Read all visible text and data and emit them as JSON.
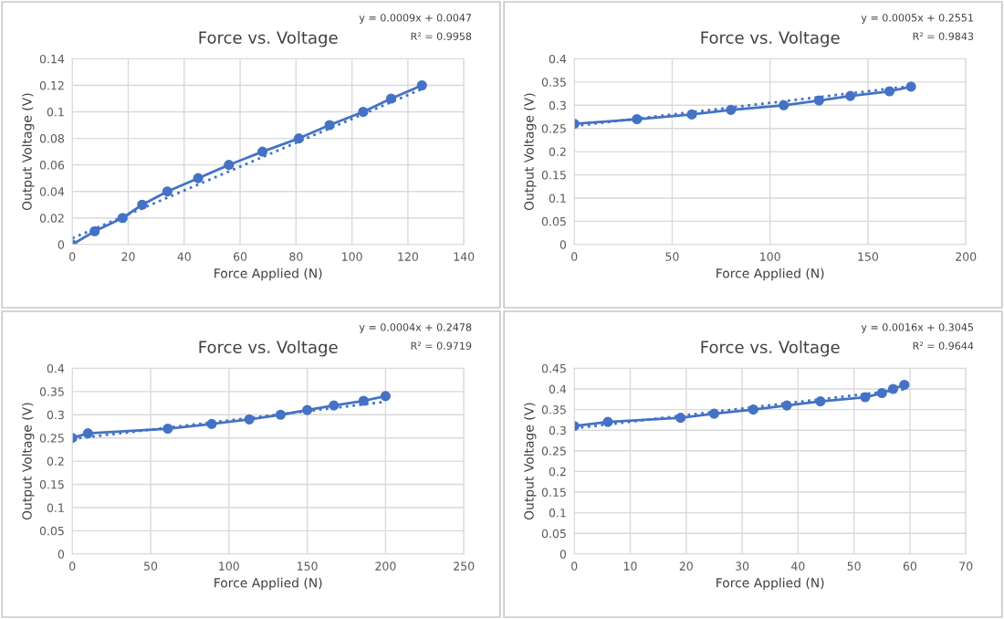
{
  "chart_data": [
    {
      "type": "line",
      "title": "Force vs. Voltage",
      "xlabel": "Force Applied (N)",
      "ylabel": "Output Voltage (V)",
      "annotations": [
        "y = 0.0009x + 0.0047",
        "R² = 0.9958"
      ],
      "xlim": [
        0,
        140
      ],
      "xticks": [
        0,
        20,
        40,
        60,
        80,
        100,
        120,
        140
      ],
      "ylim": [
        0,
        0.14
      ],
      "yticks": [
        0,
        0.02,
        0.04,
        0.06,
        0.08,
        0.1,
        0.12,
        0.14
      ],
      "grid": true,
      "legend": false,
      "series": [
        {
          "color": "#4472c4",
          "marker": "circle",
          "line_style": "solid",
          "x": [
            0,
            8,
            18,
            25,
            34,
            45,
            56,
            68,
            81,
            92,
            104,
            114,
            125
          ],
          "values": [
            0,
            0.01,
            0.02,
            0.03,
            0.04,
            0.05,
            0.06,
            0.07,
            0.08,
            0.09,
            0.1,
            0.11,
            0.12
          ]
        },
        {
          "color": "#4472c4",
          "marker": "none",
          "line_style": "dotted",
          "x": [
            0,
            125
          ],
          "values": [
            0.0047,
            0.1172
          ]
        }
      ]
    },
    {
      "type": "line",
      "title": "Force vs. Voltage",
      "xlabel": "Force Applied (N)",
      "ylabel": "Output Voltage (V)",
      "annotations": [
        "y = 0.0005x + 0.2551",
        "R² = 0.9843"
      ],
      "xlim": [
        0,
        200
      ],
      "xticks": [
        0,
        50,
        100,
        150,
        200
      ],
      "ylim": [
        0,
        0.4
      ],
      "yticks": [
        0,
        0.05,
        0.1,
        0.15,
        0.2,
        0.25,
        0.3,
        0.35,
        0.4
      ],
      "grid": true,
      "legend": false,
      "series": [
        {
          "color": "#4472c4",
          "marker": "circle",
          "line_style": "solid",
          "x": [
            0,
            32,
            60,
            80,
            107,
            125,
            141,
            161,
            172
          ],
          "values": [
            0.26,
            0.27,
            0.28,
            0.29,
            0.3,
            0.31,
            0.32,
            0.33,
            0.34
          ]
        },
        {
          "color": "#4472c4",
          "marker": "none",
          "line_style": "dotted",
          "x": [
            0,
            172
          ],
          "values": [
            0.2551,
            0.3411
          ]
        }
      ]
    },
    {
      "type": "line",
      "title": "Force vs. Voltage",
      "xlabel": "Force Applied (N)",
      "ylabel": "Output Voltage (V)",
      "annotations": [
        "y = 0.0004x + 0.2478",
        "R² = 0.9719"
      ],
      "xlim": [
        0,
        250
      ],
      "xticks": [
        0,
        50,
        100,
        150,
        200,
        250
      ],
      "ylim": [
        0,
        0.4
      ],
      "yticks": [
        0,
        0.05,
        0.1,
        0.15,
        0.2,
        0.25,
        0.3,
        0.35,
        0.4
      ],
      "grid": true,
      "legend": false,
      "series": [
        {
          "color": "#4472c4",
          "marker": "circle",
          "line_style": "solid",
          "x": [
            0,
            10,
            61,
            89,
            113,
            133,
            150,
            167,
            186,
            200
          ],
          "values": [
            0.25,
            0.26,
            0.27,
            0.28,
            0.29,
            0.3,
            0.31,
            0.32,
            0.33,
            0.34
          ]
        },
        {
          "color": "#4472c4",
          "marker": "none",
          "line_style": "dotted",
          "x": [
            0,
            200
          ],
          "values": [
            0.2478,
            0.3278
          ]
        }
      ]
    },
    {
      "type": "line",
      "title": "Force vs. Voltage",
      "xlabel": "Force Applied (N)",
      "ylabel": "Output Voltage (V)",
      "annotations": [
        "y = 0.0016x + 0.3045",
        "R² = 0.9644"
      ],
      "xlim": [
        0,
        70
      ],
      "xticks": [
        0,
        10,
        20,
        30,
        40,
        50,
        60,
        70
      ],
      "ylim": [
        0,
        0.45
      ],
      "yticks": [
        0,
        0.05,
        0.1,
        0.15,
        0.2,
        0.25,
        0.3,
        0.35,
        0.4,
        0.45
      ],
      "grid": true,
      "legend": false,
      "series": [
        {
          "color": "#4472c4",
          "marker": "circle",
          "line_style": "solid",
          "x": [
            0,
            6,
            19,
            25,
            32,
            38,
            44,
            52,
            55,
            57,
            59
          ],
          "values": [
            0.31,
            0.32,
            0.33,
            0.34,
            0.35,
            0.36,
            0.37,
            0.38,
            0.39,
            0.4,
            0.41
          ]
        },
        {
          "color": "#4472c4",
          "marker": "none",
          "line_style": "dotted",
          "x": [
            0,
            59
          ],
          "values": [
            0.3045,
            0.3989
          ]
        }
      ]
    }
  ]
}
